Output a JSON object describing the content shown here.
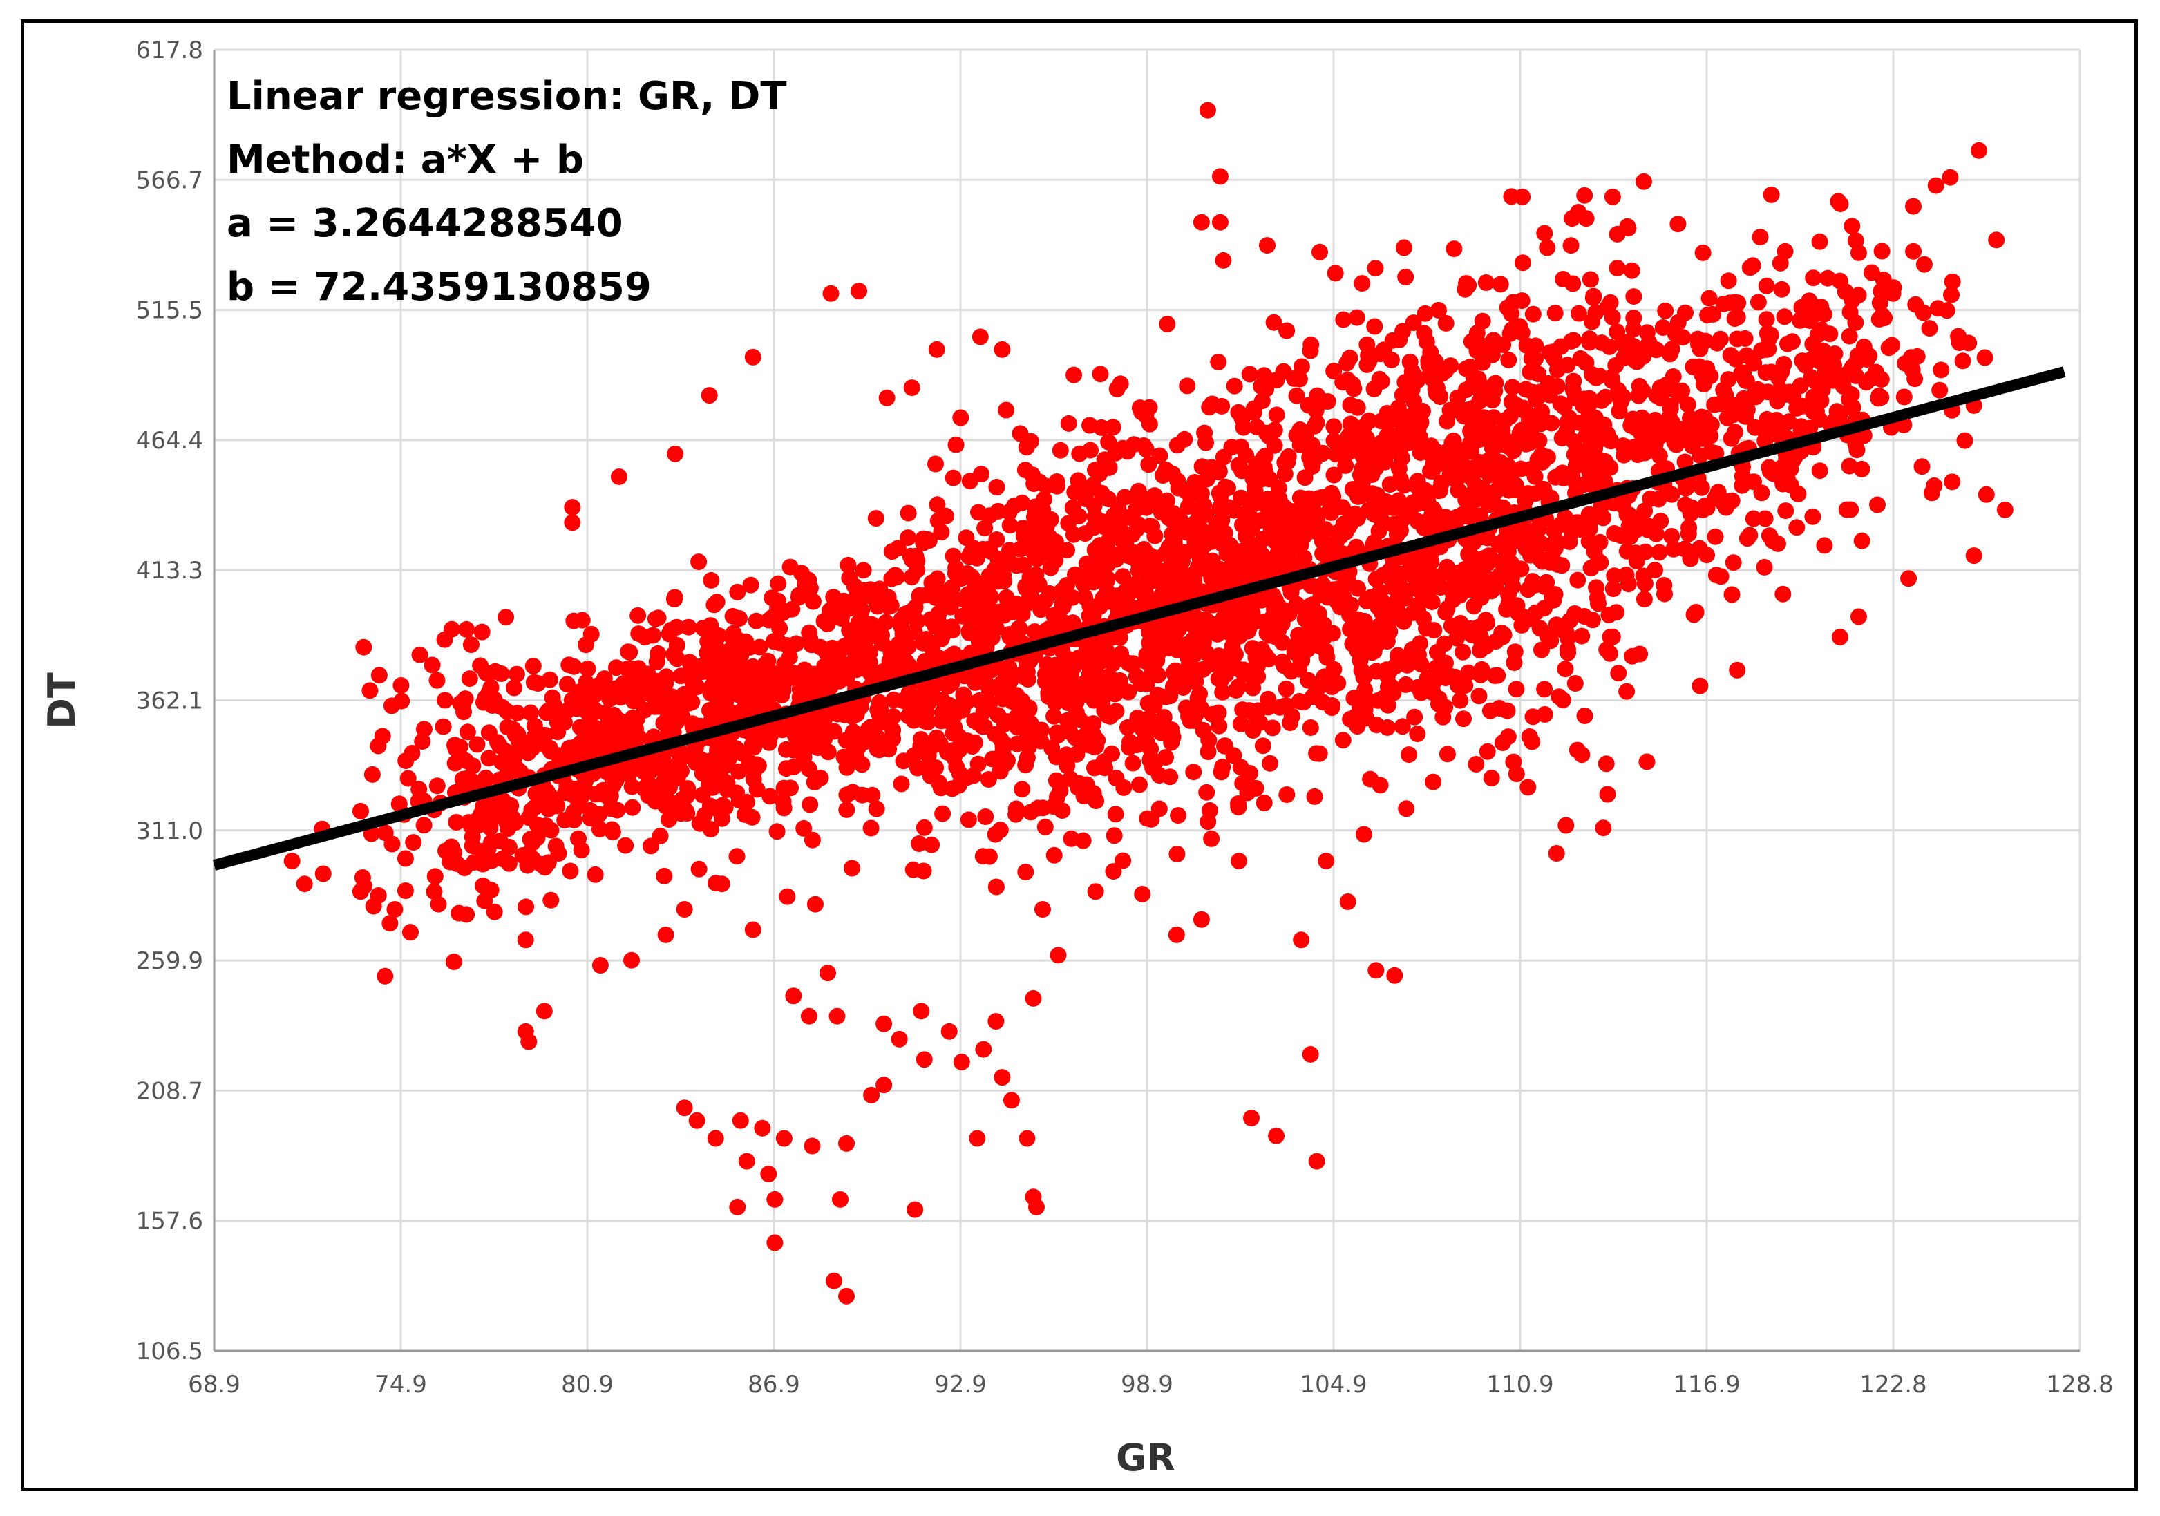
{
  "chart_data": {
    "type": "scatter",
    "title": "",
    "xlabel": "GR",
    "ylabel": "DT",
    "xlim": [
      68.9,
      128.8
    ],
    "ylim": [
      106.5,
      617.8
    ],
    "xticks": [
      "68.9",
      "74.9",
      "80.9",
      "86.9",
      "92.9",
      "98.9",
      "104.9",
      "110.9",
      "116.9",
      "122.8",
      "128.8"
    ],
    "yticks": [
      "106.5",
      "157.6",
      "208.7",
      "259.9",
      "311.0",
      "362.1",
      "413.3",
      "464.4",
      "515.5",
      "566.7",
      "617.8"
    ],
    "grid": true,
    "point_color": "#ff0000",
    "line_color": "#000000",
    "annotations": [
      "Linear regression: GR, DT",
      "Method: a*X + b",
      "a = 3.2644288540",
      "b = 72.4359130859"
    ],
    "regression": {
      "a": 3.264428854,
      "b": 72.4359130859,
      "x_start": 68.9,
      "x_end": 128.3
    },
    "points": [
      [
        100.8,
        594
      ],
      [
        101.2,
        568
      ],
      [
        100.6,
        550
      ],
      [
        101.2,
        550
      ],
      [
        110.9,
        560
      ],
      [
        114.8,
        566
      ],
      [
        113.8,
        560
      ],
      [
        112.7,
        554
      ],
      [
        88.7,
        522
      ],
      [
        89.6,
        523
      ],
      [
        86.2,
        497
      ],
      [
        84.8,
        482
      ],
      [
        83.7,
        459
      ],
      [
        81.9,
        450
      ],
      [
        80.4,
        438
      ],
      [
        80.4,
        432
      ],
      [
        90.5,
        481
      ],
      [
        91.3,
        485
      ],
      [
        92.1,
        500
      ],
      [
        93.5,
        505
      ],
      [
        94.2,
        500
      ],
      [
        96.5,
        490
      ],
      [
        101.3,
        535
      ],
      [
        99.5,
        510
      ],
      [
        104.9,
        530
      ],
      [
        107.1,
        540
      ],
      [
        109.1,
        526
      ],
      [
        111.7,
        540
      ],
      [
        116.7,
        538
      ],
      [
        118.3,
        533
      ],
      [
        121.7,
        538
      ],
      [
        122.8,
        522
      ],
      [
        124.3,
        484
      ],
      [
        125.4,
        478
      ],
      [
        124.7,
        448
      ],
      [
        125.8,
        443
      ],
      [
        126.4,
        437
      ],
      [
        125.4,
        419
      ],
      [
        123.3,
        410
      ],
      [
        122.3,
        439
      ],
      [
        121.8,
        453
      ],
      [
        120.6,
        423
      ],
      [
        121.7,
        395
      ],
      [
        121.1,
        387
      ],
      [
        117.8,
        374
      ],
      [
        114.9,
        338
      ],
      [
        112.3,
        313
      ],
      [
        112.0,
        302
      ],
      [
        113.5,
        312
      ],
      [
        73.7,
        383
      ],
      [
        74.2,
        372
      ],
      [
        74.9,
        368
      ],
      [
        75.5,
        380
      ],
      [
        76.3,
        386
      ],
      [
        77.0,
        390
      ],
      [
        77.5,
        389
      ],
      [
        75.9,
        376
      ],
      [
        73.9,
        366
      ],
      [
        74.6,
        360
      ],
      [
        71.4,
        299
      ],
      [
        71.8,
        290
      ],
      [
        72.4,
        294
      ],
      [
        73.6,
        287
      ],
      [
        74.7,
        280
      ],
      [
        75.2,
        271
      ],
      [
        76.1,
        282
      ],
      [
        77.0,
        278
      ],
      [
        77.9,
        279
      ],
      [
        78.9,
        268
      ],
      [
        79.5,
        240
      ],
      [
        78.9,
        232
      ],
      [
        79.0,
        228
      ],
      [
        81.3,
        258
      ],
      [
        82.3,
        260
      ],
      [
        83.4,
        270
      ],
      [
        84.0,
        280
      ],
      [
        85.2,
        290
      ],
      [
        86.2,
        272
      ],
      [
        87.3,
        285
      ],
      [
        88.2,
        282
      ],
      [
        88.0,
        238
      ],
      [
        88.9,
        238
      ],
      [
        87.5,
        246
      ],
      [
        88.6,
        255
      ],
      [
        90.4,
        235
      ],
      [
        90.9,
        229
      ],
      [
        91.6,
        240
      ],
      [
        92.5,
        232
      ],
      [
        91.7,
        221
      ],
      [
        92.9,
        220
      ],
      [
        93.6,
        225
      ],
      [
        94.0,
        236
      ],
      [
        94.2,
        214
      ],
      [
        94.5,
        205
      ],
      [
        95.2,
        245
      ],
      [
        96.0,
        262
      ],
      [
        90.0,
        207
      ],
      [
        90.4,
        211
      ],
      [
        84.0,
        202
      ],
      [
        84.4,
        197
      ],
      [
        85.0,
        190
      ],
      [
        85.8,
        197
      ],
      [
        86.5,
        194
      ],
      [
        87.2,
        190
      ],
      [
        88.1,
        187
      ],
      [
        86.0,
        181
      ],
      [
        86.7,
        176
      ],
      [
        86.9,
        166
      ],
      [
        85.7,
        163
      ],
      [
        86.9,
        149
      ],
      [
        88.8,
        134
      ],
      [
        89.2,
        128
      ],
      [
        89.0,
        166
      ],
      [
        89.2,
        188
      ],
      [
        91.4,
        162
      ],
      [
        93.4,
        190
      ],
      [
        95.0,
        190
      ],
      [
        95.2,
        167
      ],
      [
        95.3,
        163
      ],
      [
        102.2,
        198
      ],
      [
        103.0,
        191
      ],
      [
        104.3,
        181
      ],
      [
        104.1,
        223
      ],
      [
        103.8,
        268
      ],
      [
        106.2,
        256
      ],
      [
        106.8,
        254
      ],
      [
        105.3,
        283
      ],
      [
        104.6,
        299
      ],
      [
        101.8,
        299
      ],
      [
        100.6,
        276
      ],
      [
        99.8,
        270
      ],
      [
        98.7,
        286
      ],
      [
        97.8,
        309
      ],
      [
        96.8,
        307
      ],
      [
        95.5,
        280
      ],
      [
        97.2,
        287
      ]
    ]
  }
}
